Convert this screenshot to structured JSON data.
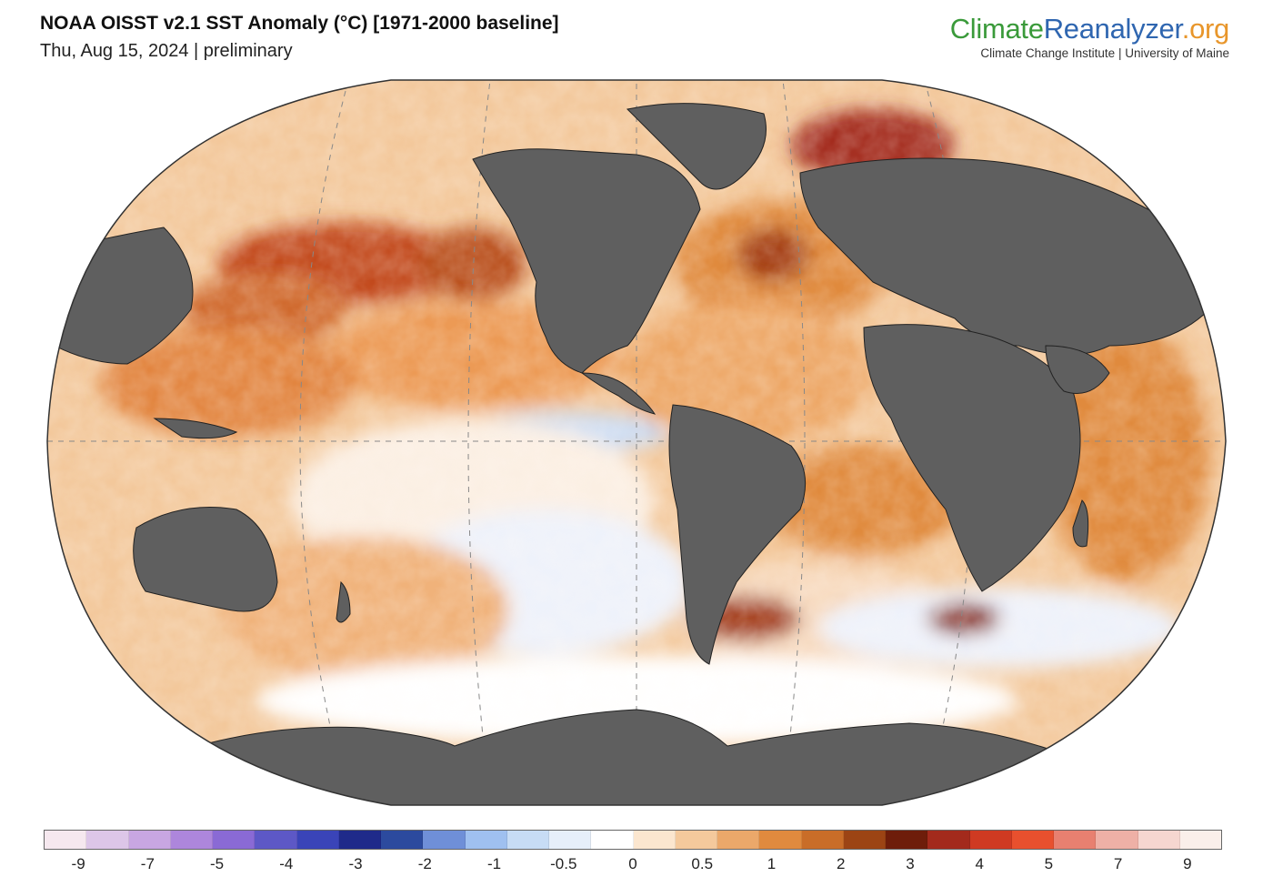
{
  "header": {
    "title": "NOAA OISST v2.1 SST Anomaly (°C) [1971-2000 baseline]",
    "subtitle": "Thu, Aug 15, 2024 | preliminary"
  },
  "brand": {
    "part1": "Climate",
    "part2": "Reanalyzer",
    "part3": ".org",
    "tagline": "Climate Change Institute | University of Maine",
    "colors": {
      "climate": "#3a9a3a",
      "reanalyzer": "#2f66b0",
      "org": "#e8962b"
    }
  },
  "map": {
    "projection": "Winkel tripel / global",
    "land_color": "#5f5f5f",
    "graticule": "dashed"
  },
  "colorbar": {
    "colors": [
      "#f6e8ef",
      "#ddc6e8",
      "#c8a6e2",
      "#ad86dc",
      "#8a6ad5",
      "#5d58c6",
      "#3a44b8",
      "#1f2a8a",
      "#2c4a9e",
      "#6f8fd8",
      "#9fc0f0",
      "#c7dcf5",
      "#e6effa",
      "#ffffff",
      "#fbe6cf",
      "#f4c99c",
      "#eba86a",
      "#e08a3e",
      "#c96d28",
      "#9c4414",
      "#6e1d0a",
      "#a32a1c",
      "#cf3a22",
      "#e8502e",
      "#e88070",
      "#eeb0a6",
      "#f6d6d0",
      "#faefea"
    ],
    "ticks": [
      "-9",
      "-7",
      "-5",
      "-4",
      "-3",
      "-2",
      "-1",
      "-0.5",
      "0",
      "0.5",
      "1",
      "2",
      "3",
      "4",
      "5",
      "7",
      "9"
    ]
  }
}
